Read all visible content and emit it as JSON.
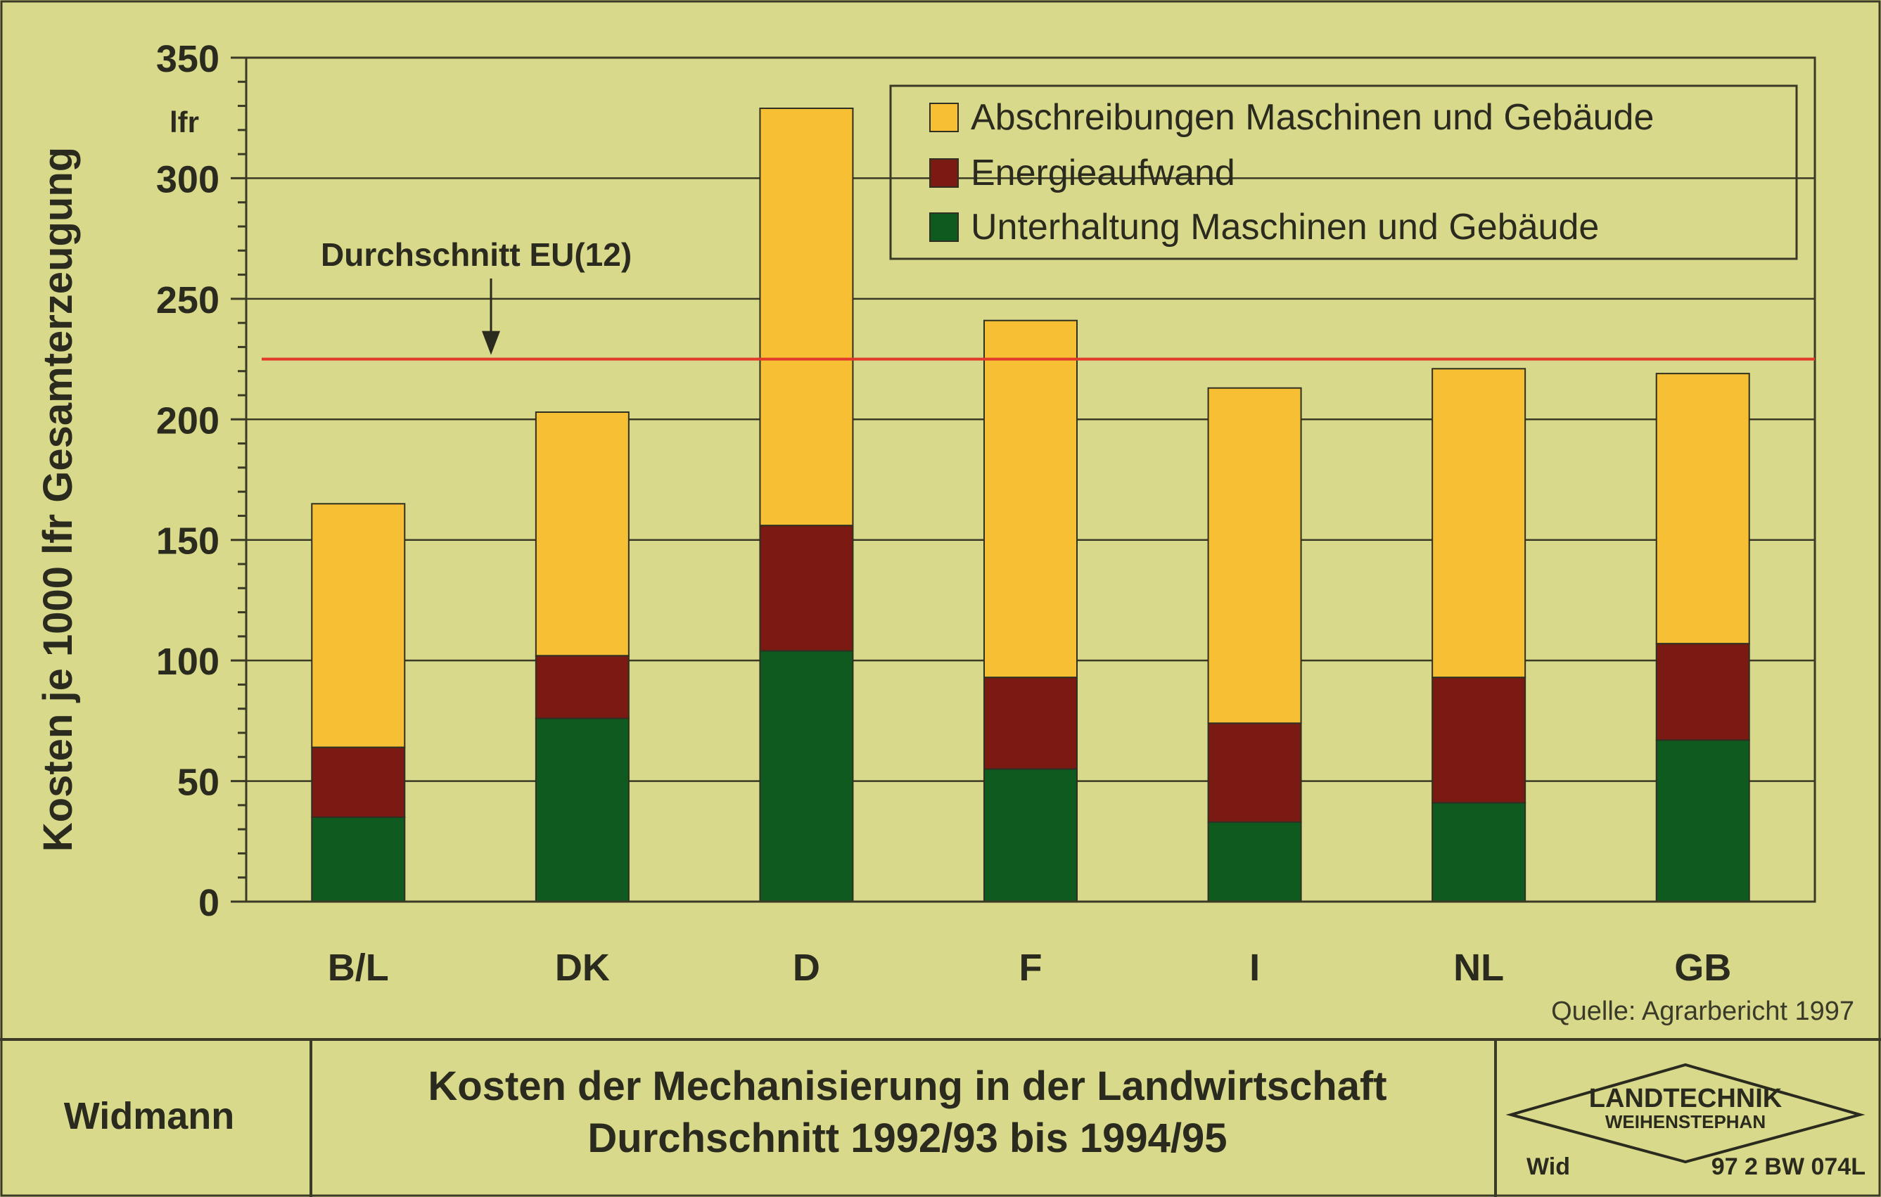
{
  "chart_data": {
    "type": "bar",
    "stacked": true,
    "categories": [
      "B/L",
      "DK",
      "D",
      "F",
      "I",
      "NL",
      "GB"
    ],
    "series": [
      {
        "name": "Unterhaltung Maschinen und Gebäude",
        "color": "#0f5a1e",
        "values": [
          35,
          76,
          104,
          55,
          33,
          41,
          67
        ]
      },
      {
        "name": "Energieaufwand",
        "color": "#7a1a12",
        "values": [
          29,
          26,
          52,
          38,
          41,
          52,
          40
        ]
      },
      {
        "name": "Abschreibungen Maschinen und Gebäude",
        "color": "#f7c034",
        "values": [
          101,
          101,
          173,
          148,
          139,
          128,
          112
        ]
      }
    ],
    "legend_order": [
      2,
      1,
      0
    ],
    "legend_position": "top-right",
    "ylabel": "Kosten je 1000 lfr Gesamterzeugung",
    "yunit": "lfr",
    "ylim": [
      0,
      350
    ],
    "yticks": [
      0,
      50,
      100,
      150,
      200,
      250,
      300,
      350
    ],
    "grid": true,
    "reference_line": {
      "label": "Durchschnitt EU(12)",
      "value": 225,
      "color": "#e23a2a"
    },
    "source": "Quelle: Agrarbericht 1997"
  },
  "footer": {
    "author": "Widmann",
    "title_line1": "Kosten der Mechanisierung in der Landwirtschaft",
    "title_line2": "Durchschnitt 1992/93 bis 1994/95",
    "logo_line1": "LANDTECHNIK",
    "logo_line2": "WEIHENSTEPHAN",
    "code_left": "Wid",
    "code_right": "97 2 BW 074L"
  },
  "colors": {
    "background": "#d8d98a",
    "grid": "#3a3a26",
    "text": "#2a2a1e"
  }
}
